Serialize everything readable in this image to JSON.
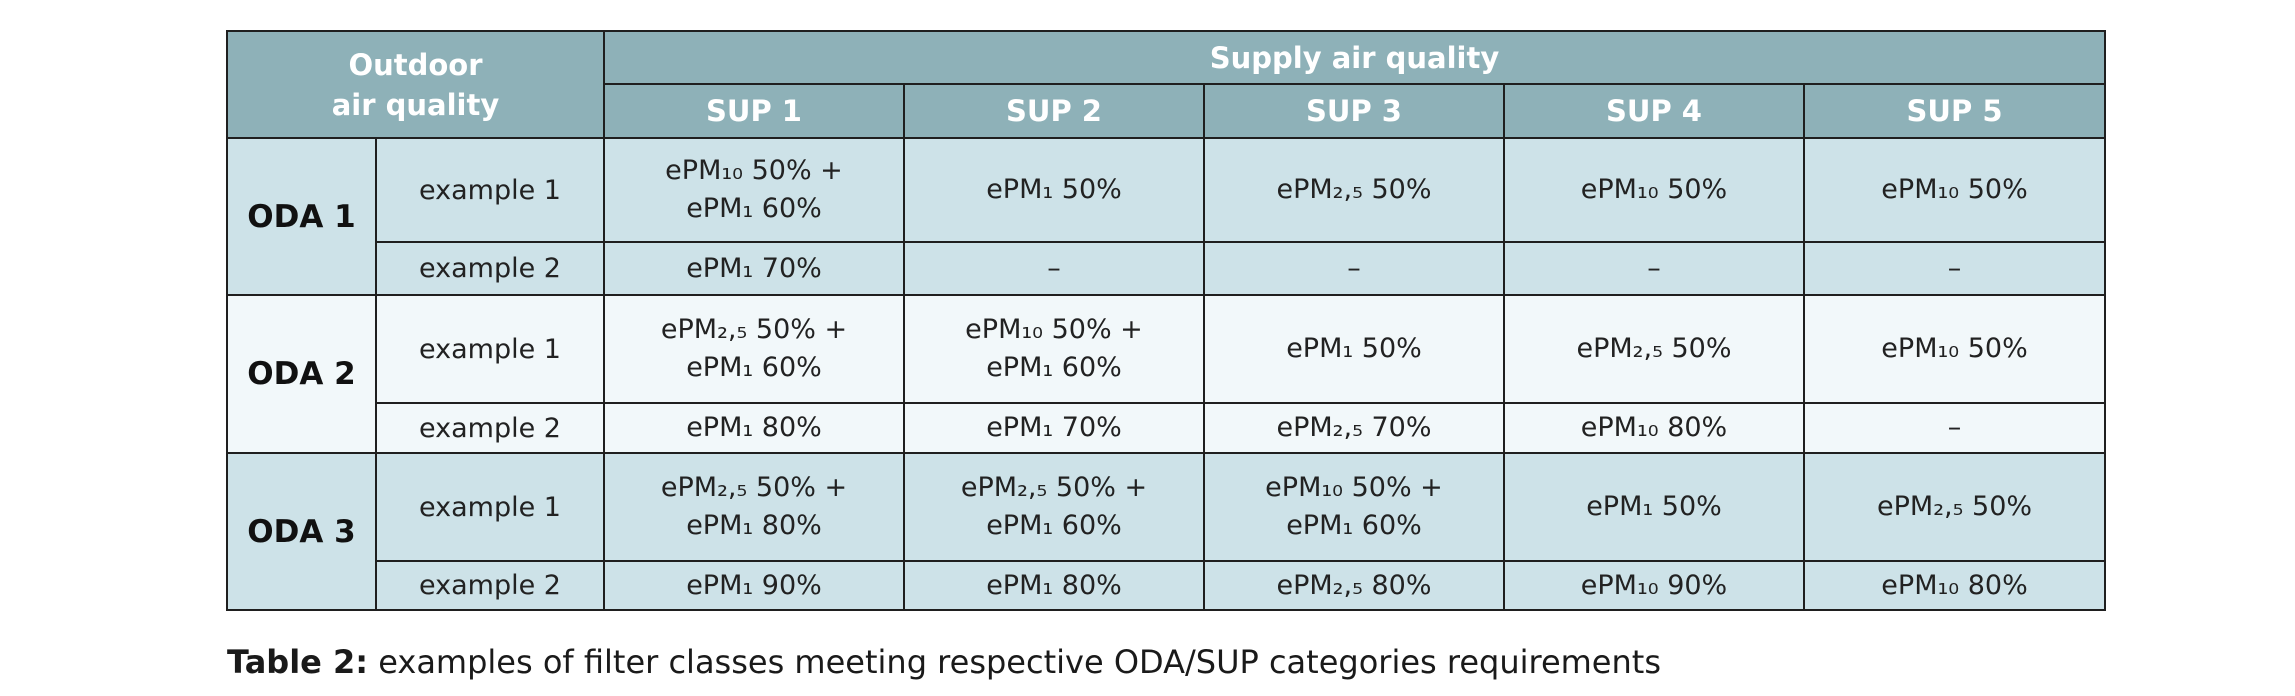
{
  "header": {
    "outdoor_line1": "Outdoor",
    "outdoor_line2": "air quality",
    "supply": "Supply air quality",
    "sup_columns": [
      "SUP 1",
      "SUP 2",
      "SUP 3",
      "SUP 4",
      "SUP 5"
    ]
  },
  "groups": [
    {
      "oda": "ODA 1",
      "rows": [
        {
          "example": "example 1",
          "cells": [
            [
              "ePM₁₀ 50% +",
              "ePM₁ 60%"
            ],
            [
              "ePM₁ 50%"
            ],
            [
              "ePM₂,₅ 50%"
            ],
            [
              "ePM₁₀ 50%"
            ],
            [
              "ePM₁₀ 50%"
            ]
          ]
        },
        {
          "example": "example 2",
          "cells": [
            [
              "ePM₁ 70%"
            ],
            [
              "–"
            ],
            [
              "–"
            ],
            [
              "–"
            ],
            [
              "–"
            ]
          ]
        }
      ]
    },
    {
      "oda": "ODA 2",
      "rows": [
        {
          "example": "example 1",
          "cells": [
            [
              "ePM₂,₅ 50% +",
              "ePM₁ 60%"
            ],
            [
              "ePM₁₀ 50% +",
              "ePM₁ 60%"
            ],
            [
              "ePM₁ 50%"
            ],
            [
              "ePM₂,₅ 50%"
            ],
            [
              "ePM₁₀ 50%"
            ]
          ]
        },
        {
          "example": "example 2",
          "cells": [
            [
              "ePM₁ 80%"
            ],
            [
              "ePM₁ 70%"
            ],
            [
              "ePM₂,₅ 70%"
            ],
            [
              "ePM₁₀ 80%"
            ],
            [
              "–"
            ]
          ]
        }
      ]
    },
    {
      "oda": "ODA 3",
      "rows": [
        {
          "example": "example 1",
          "cells": [
            [
              "ePM₂,₅ 50% +",
              "ePM₁ 80%"
            ],
            [
              "ePM₂,₅ 50% +",
              "ePM₁ 60%"
            ],
            [
              "ePM₁₀ 50% +",
              "ePM₁ 60%"
            ],
            [
              "ePM₁ 50%"
            ],
            [
              "ePM₂,₅ 50%"
            ]
          ]
        },
        {
          "example": "example 2",
          "cells": [
            [
              "ePM₁ 90%"
            ],
            [
              "ePM₁ 80%"
            ],
            [
              "ePM₂,₅ 80%"
            ],
            [
              "ePM₁₀ 90%"
            ],
            [
              "ePM₁₀ 80%"
            ]
          ]
        }
      ]
    }
  ],
  "caption": {
    "label": "Table 2:",
    "text": " examples of filter classes meeting respective ODA/SUP categories requirements"
  },
  "colors": {
    "header_bg": "#8eb1b8",
    "group_dark_bg": "#cde2e8",
    "group_light_bg": "#f2f8fa",
    "border": "#1f1f1f"
  }
}
